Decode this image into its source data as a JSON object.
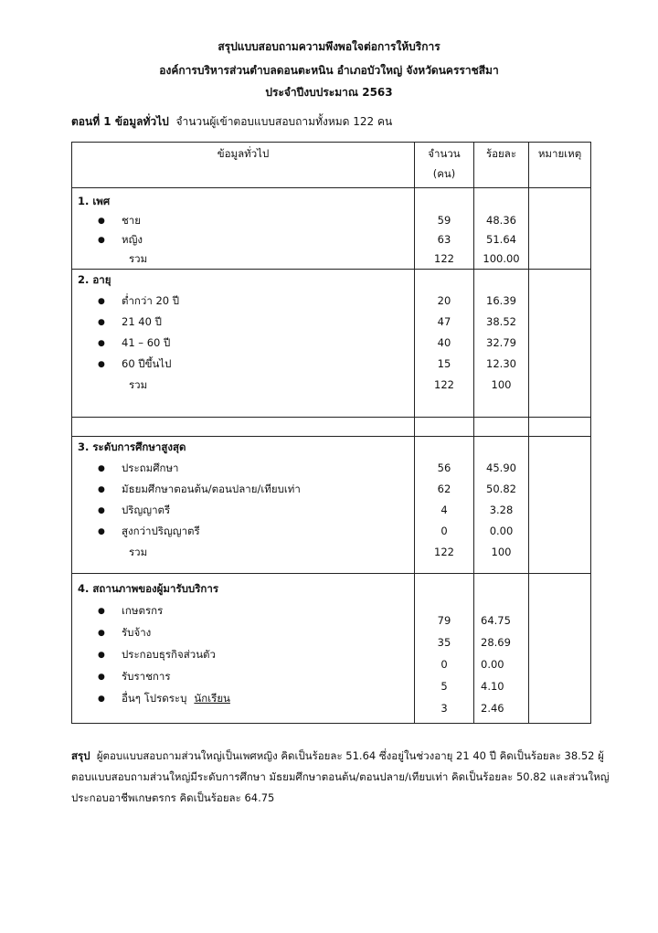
{
  "title": {
    "line1": "สรุปแบบสอบถามความพึงพอใจต่อการให้บริการ",
    "line2": "องค์การบริหารส่วนตำบลดอนตะหนิน  อำเภอบัวใหญ่  จังหวัดนครราชสีมา",
    "line3": "ประจำปีงบประมาณ  2563"
  },
  "part": {
    "label": "ตอนที่ 1 ข้อมูลทั่วไป",
    "text": "จำนวนผู้เข้าตอบแบบสอบถามทั้งหมด  122  คน"
  },
  "table": {
    "headers": {
      "info": "ข้อมูลทั่วไป",
      "count_1": "จำนวน",
      "count_2": "(คน)",
      "percent": "ร้อยละ",
      "note": "หมายเหตุ"
    },
    "total_label": "รวม",
    "sections": [
      {
        "heading": "1.  เพศ",
        "items": [
          {
            "label": "ชาย",
            "count": "59",
            "percent": "48.36"
          },
          {
            "label": "หญิง",
            "count": "63",
            "percent": "51.64"
          }
        ],
        "total_count": "122",
        "total_percent": "100.00"
      },
      {
        "heading": "2.  อายุ",
        "items": [
          {
            "label": "ต่ำกว่า 20 ปี",
            "count": "20",
            "percent": "16.39"
          },
          {
            "label": "21    40 ปี",
            "count": "47",
            "percent": "38.52"
          },
          {
            "label": "41 – 60 ปี",
            "count": "40",
            "percent": "32.79"
          },
          {
            "label": "60 ปีขึ้นไป",
            "count": "15",
            "percent": "12.30"
          }
        ],
        "total_count": "122",
        "total_percent": "100"
      },
      {
        "heading": "3.  ระดับการศึกษาสูงสุด",
        "items": [
          {
            "label": "ประถมศึกษา",
            "count": "56",
            "percent": "45.90"
          },
          {
            "label": "มัธยมศึกษาตอนต้น/ตอนปลาย/เทียบเท่า",
            "count": "62",
            "percent": "50.82"
          },
          {
            "label": "ปริญญาตรี",
            "count": "4",
            "percent": "3.28"
          },
          {
            "label": "สูงกว่าปริญญาตรี",
            "count": "0",
            "percent": "0.00"
          }
        ],
        "total_count": "122",
        "total_percent": "100"
      },
      {
        "heading": "4.  สถานภาพของผู้มารับบริการ",
        "items": [
          {
            "label": "เกษตรกร",
            "count": "79",
            "percent": "64.75"
          },
          {
            "label": "รับจ้าง",
            "count": "35",
            "percent": "28.69"
          },
          {
            "label": "ประกอบธุรกิจส่วนตัว",
            "count": "0",
            "percent": "0.00"
          },
          {
            "label": "รับราชการ",
            "count": "5",
            "percent": "4.10"
          },
          {
            "label": "อื่นๆ  โปรดระบุ",
            "extra": "นักเรียน",
            "count": "3",
            "percent": "2.46"
          }
        ]
      }
    ]
  },
  "summary": {
    "label": "สรุป",
    "text": "ผู้ตอบแบบสอบถามส่วนใหญ่เป็นเพศหญิง  คิดเป็นร้อยละ  51.64  ซึ่งอยู่ในช่วงอายุ  21 40  ปี  คิดเป็นร้อยละ  38.52  ผู้ตอบแบบสอบถามส่วนใหญ่มีระดับการศึกษา  มัธยมศึกษาตอนต้น/ตอนปลาย/เทียบเท่า คิดเป็นร้อยละ  50.82  และส่วนใหญ่ประกอบอาชีพเกษตรกร  คิดเป็นร้อยละ  64.75"
  }
}
